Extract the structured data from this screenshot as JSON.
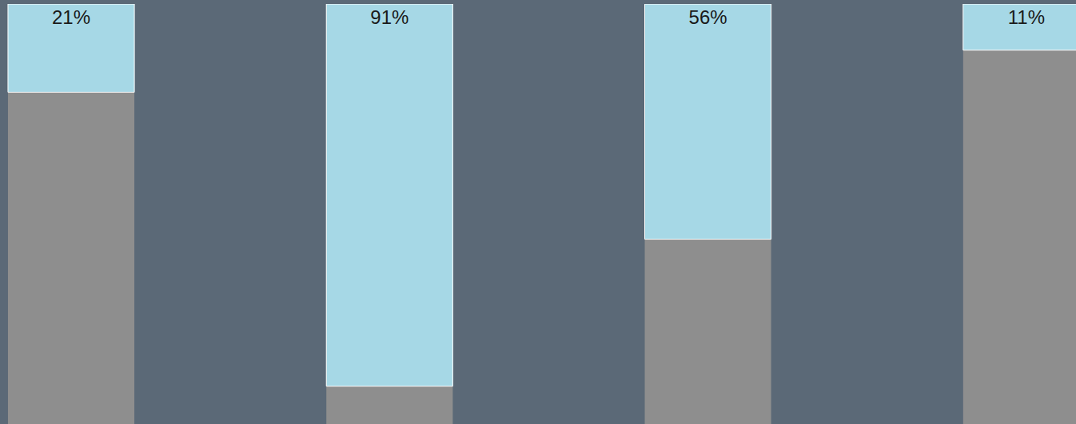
{
  "chart_data": {
    "type": "bar",
    "categories": [
      null,
      null,
      null,
      null
    ],
    "values": [
      21,
      91,
      56,
      11
    ],
    "value_labels": [
      "21%",
      "91%",
      "56%",
      "11%"
    ],
    "color": "#a6d8e6",
    "ylim": [
      0,
      100
    ],
    "data_labels": true,
    "tick_labels": false,
    "grid": false
  }
}
